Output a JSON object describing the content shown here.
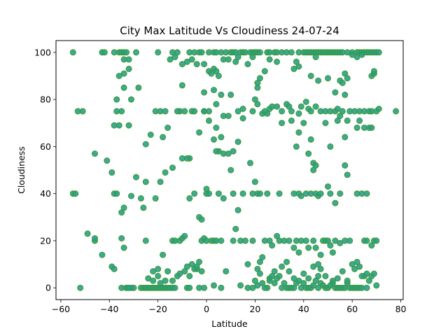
{
  "chart_data": {
    "type": "scatter",
    "title": "City Max Latitude Vs Cloudiness 24-07-24",
    "xlabel": "Latitude",
    "ylabel": "Cloudiness",
    "xlim": [
      -62,
      81
    ],
    "ylim": [
      -5,
      105
    ],
    "xticks": [
      -60,
      -40,
      -20,
      0,
      20,
      40,
      60,
      80
    ],
    "yticks": [
      0,
      20,
      40,
      60,
      80,
      100
    ],
    "xtick_labels": [
      "−60",
      "−40",
      "−20",
      "0",
      "20",
      "40",
      "60",
      "80"
    ],
    "ytick_labels": [
      "0",
      "20",
      "40",
      "60",
      "80",
      "100"
    ],
    "grid": false,
    "marker_face": "#2a9d8f",
    "marker_edge": "#3a9a1e",
    "points": [
      [
        -55,
        100
      ],
      [
        -43,
        100
      ],
      [
        -42,
        100
      ],
      [
        -38,
        100
      ],
      [
        -36,
        100
      ],
      [
        -35,
        100
      ],
      [
        -34,
        100
      ],
      [
        -33,
        100
      ],
      [
        -29,
        100
      ],
      [
        -20,
        100
      ],
      [
        -14,
        100
      ],
      [
        -12,
        100
      ],
      [
        -7,
        100
      ],
      [
        -5,
        100
      ],
      [
        -3,
        100
      ],
      [
        -2,
        100
      ],
      [
        1,
        100
      ],
      [
        3,
        100
      ],
      [
        4,
        100
      ],
      [
        6,
        100
      ],
      [
        8,
        100
      ],
      [
        10,
        100
      ],
      [
        11,
        100
      ],
      [
        12,
        100
      ],
      [
        14,
        100
      ],
      [
        15,
        100
      ],
      [
        16,
        100
      ],
      [
        18,
        100
      ],
      [
        19,
        100
      ],
      [
        20,
        100
      ],
      [
        21,
        100
      ],
      [
        22,
        100
      ],
      [
        25,
        100
      ],
      [
        26,
        100
      ],
      [
        28,
        100
      ],
      [
        29,
        100
      ],
      [
        31,
        100
      ],
      [
        33,
        100
      ],
      [
        35,
        100
      ],
      [
        38,
        100
      ],
      [
        40,
        100
      ],
      [
        41,
        100
      ],
      [
        42,
        100
      ],
      [
        43,
        100
      ],
      [
        44,
        100
      ],
      [
        45,
        100
      ],
      [
        46,
        100
      ],
      [
        47,
        100
      ],
      [
        48,
        100
      ],
      [
        49,
        100
      ],
      [
        50,
        100
      ],
      [
        51,
        100
      ],
      [
        52,
        100
      ],
      [
        53,
        100
      ],
      [
        54,
        100
      ],
      [
        55,
        100
      ],
      [
        56,
        100
      ],
      [
        58,
        100
      ],
      [
        60,
        100
      ],
      [
        62,
        100
      ],
      [
        63,
        100
      ],
      [
        64,
        100
      ],
      [
        65,
        100
      ],
      [
        66,
        100
      ],
      [
        67,
        100
      ],
      [
        68,
        100
      ],
      [
        69,
        100
      ],
      [
        70,
        100
      ],
      [
        71,
        100
      ],
      [
        -34,
        97
      ],
      [
        -32,
        97
      ],
      [
        -15,
        97
      ],
      [
        -13,
        98
      ],
      [
        -36,
        90
      ],
      [
        -34,
        91
      ],
      [
        -32,
        93
      ],
      [
        -10,
        95
      ],
      [
        -8,
        96
      ],
      [
        -6,
        97
      ],
      [
        -4,
        95
      ],
      [
        -1,
        95
      ],
      [
        1,
        92
      ],
      [
        2,
        91
      ],
      [
        3,
        93
      ],
      [
        4,
        92
      ],
      [
        5,
        90
      ],
      [
        7,
        97
      ],
      [
        9,
        97
      ],
      [
        12,
        96
      ],
      [
        13,
        98
      ],
      [
        17,
        95
      ],
      [
        19,
        98
      ],
      [
        21,
        87
      ],
      [
        22,
        89
      ],
      [
        24,
        92
      ],
      [
        26,
        97
      ],
      [
        29,
        96
      ],
      [
        36,
        93
      ],
      [
        37,
        96
      ],
      [
        38,
        94
      ],
      [
        43,
        90
      ],
      [
        45,
        98
      ],
      [
        46,
        88
      ],
      [
        50,
        89
      ],
      [
        53,
        83
      ],
      [
        55,
        88
      ],
      [
        56,
        87
      ],
      [
        57,
        91
      ],
      [
        58,
        89
      ],
      [
        60,
        99
      ],
      [
        62,
        98
      ],
      [
        64,
        99
      ],
      [
        68,
        90
      ],
      [
        69,
        91
      ],
      [
        69,
        92
      ],
      [
        -53,
        75
      ],
      [
        -51,
        75
      ],
      [
        -38,
        69
      ],
      [
        -37,
        75
      ],
      [
        -37,
        80
      ],
      [
        -35,
        75
      ],
      [
        -34,
        85
      ],
      [
        -31,
        80
      ],
      [
        -28,
        85
      ],
      [
        -21,
        75
      ],
      [
        -19,
        75
      ],
      [
        -17,
        75
      ],
      [
        -11,
        75
      ],
      [
        -9,
        75
      ],
      [
        -6,
        75
      ],
      [
        -1,
        75
      ],
      [
        -1,
        83
      ],
      [
        1,
        75
      ],
      [
        3,
        84
      ],
      [
        4,
        78
      ],
      [
        6,
        82
      ],
      [
        7,
        73
      ],
      [
        9,
        73
      ],
      [
        10,
        82
      ],
      [
        13,
        75
      ],
      [
        15,
        76
      ],
      [
        19,
        75
      ],
      [
        21,
        85
      ],
      [
        23,
        74
      ],
      [
        25,
        74
      ],
      [
        26,
        76
      ],
      [
        27,
        77
      ],
      [
        31,
        75
      ],
      [
        33,
        78
      ],
      [
        34,
        77
      ],
      [
        35,
        75
      ],
      [
        38,
        74
      ],
      [
        39,
        77
      ],
      [
        41,
        79
      ],
      [
        42,
        76
      ],
      [
        43,
        75
      ],
      [
        45,
        77
      ],
      [
        47,
        75
      ],
      [
        49,
        75
      ],
      [
        51,
        75
      ],
      [
        53,
        75
      ],
      [
        54,
        76
      ],
      [
        56,
        75
      ],
      [
        57,
        82
      ],
      [
        59,
        75
      ],
      [
        61,
        75
      ],
      [
        63,
        75
      ],
      [
        65,
        75
      ],
      [
        67,
        75
      ],
      [
        68,
        75
      ],
      [
        70,
        75
      ],
      [
        71,
        76
      ],
      [
        78,
        75
      ],
      [
        -36,
        69
      ],
      [
        -32,
        69
      ],
      [
        -25,
        61
      ],
      [
        -23,
        65
      ],
      [
        -18,
        64
      ],
      [
        -16,
        68
      ],
      [
        -12,
        75
      ],
      [
        -10,
        86
      ],
      [
        -7,
        55
      ],
      [
        -5,
        75
      ],
      [
        -3,
        66
      ],
      [
        -1,
        75
      ],
      [
        1,
        71
      ],
      [
        3,
        63
      ],
      [
        4,
        68
      ],
      [
        5,
        58
      ],
      [
        6,
        64
      ],
      [
        7,
        57
      ],
      [
        9,
        57
      ],
      [
        11,
        58
      ],
      [
        13,
        62
      ],
      [
        15,
        72
      ],
      [
        20,
        80
      ],
      [
        21,
        78
      ],
      [
        24,
        75
      ],
      [
        29,
        77
      ],
      [
        31,
        70
      ],
      [
        35,
        71
      ],
      [
        37,
        60
      ],
      [
        38,
        66
      ],
      [
        40,
        70
      ],
      [
        42,
        57
      ],
      [
        43,
        63
      ],
      [
        44,
        53
      ],
      [
        45,
        52
      ],
      [
        49,
        70
      ],
      [
        51,
        60
      ],
      [
        54,
        71
      ],
      [
        55,
        73
      ],
      [
        57,
        64
      ],
      [
        58,
        71
      ],
      [
        62,
        68
      ],
      [
        63,
        71
      ],
      [
        65,
        68
      ],
      [
        67,
        68
      ],
      [
        68,
        68
      ],
      [
        -55,
        40
      ],
      [
        -46,
        57
      ],
      [
        -41,
        54
      ],
      [
        -39,
        49
      ],
      [
        -38,
        40
      ],
      [
        -37,
        40
      ],
      [
        -35,
        32
      ],
      [
        -34,
        34
      ],
      [
        -31,
        39
      ],
      [
        -29,
        47
      ],
      [
        -25,
        45
      ],
      [
        -21,
        38
      ],
      [
        -19,
        45
      ],
      [
        -17,
        49
      ],
      [
        -14,
        51
      ],
      [
        -10,
        55
      ],
      [
        -8,
        55
      ],
      [
        -7,
        38
      ],
      [
        -5,
        40
      ],
      [
        -3,
        30
      ],
      [
        -2,
        29
      ],
      [
        0,
        42
      ],
      [
        0,
        40
      ],
      [
        1,
        40
      ],
      [
        4,
        58
      ],
      [
        5,
        40
      ],
      [
        7,
        38
      ],
      [
        10,
        50
      ],
      [
        11,
        40
      ],
      [
        13,
        33
      ],
      [
        15,
        40
      ],
      [
        18,
        53
      ],
      [
        19,
        40
      ],
      [
        20,
        45
      ],
      [
        21,
        40
      ],
      [
        22,
        40
      ],
      [
        25,
        40
      ],
      [
        30,
        40
      ],
      [
        36,
        40
      ],
      [
        38,
        40
      ],
      [
        39,
        39
      ],
      [
        41,
        40
      ],
      [
        43,
        40
      ],
      [
        44,
        50
      ],
      [
        45,
        40
      ],
      [
        46,
        39
      ],
      [
        47,
        40
      ],
      [
        50,
        43
      ],
      [
        51,
        40
      ],
      [
        53,
        36
      ],
      [
        55,
        40
      ],
      [
        57,
        52
      ],
      [
        58,
        48
      ],
      [
        62,
        40
      ],
      [
        64,
        40
      ],
      [
        66,
        40
      ],
      [
        -54,
        40
      ],
      [
        -49,
        23
      ],
      [
        -46,
        20
      ],
      [
        -46,
        21
      ],
      [
        -43,
        14
      ],
      [
        -39,
        9
      ],
      [
        -38,
        8
      ],
      [
        -35,
        21
      ],
      [
        -34,
        17
      ],
      [
        -33,
        0
      ],
      [
        -31,
        0
      ],
      [
        -30,
        0
      ],
      [
        -27,
        38
      ],
      [
        -26,
        34
      ],
      [
        -25,
        20
      ],
      [
        -24,
        4
      ],
      [
        -22,
        7
      ],
      [
        -20,
        8
      ],
      [
        -18,
        14
      ],
      [
        -16,
        7
      ],
      [
        -14,
        20
      ],
      [
        -13,
        20
      ],
      [
        -12,
        5
      ],
      [
        -11,
        20
      ],
      [
        -10,
        21
      ],
      [
        -9,
        22
      ],
      [
        -8,
        9
      ],
      [
        -6,
        10
      ],
      [
        -4,
        8
      ],
      [
        -3,
        11
      ],
      [
        -2,
        20
      ],
      [
        -1,
        21
      ],
      [
        0,
        20
      ],
      [
        2,
        20
      ],
      [
        3,
        20
      ],
      [
        4,
        20
      ],
      [
        6,
        20
      ],
      [
        8,
        7
      ],
      [
        11,
        20
      ],
      [
        12,
        25
      ],
      [
        14,
        20
      ],
      [
        16,
        20
      ],
      [
        17,
        10
      ],
      [
        19,
        20
      ],
      [
        21,
        8
      ],
      [
        22,
        11
      ],
      [
        23,
        13
      ],
      [
        24,
        20
      ],
      [
        26,
        20
      ],
      [
        27,
        18
      ],
      [
        29,
        22
      ],
      [
        30,
        20
      ],
      [
        32,
        20
      ],
      [
        34,
        20
      ],
      [
        36,
        17
      ],
      [
        37,
        20
      ],
      [
        38,
        15
      ],
      [
        39,
        20
      ],
      [
        41,
        20
      ],
      [
        42,
        17
      ],
      [
        44,
        20
      ],
      [
        45,
        17
      ],
      [
        46,
        10
      ],
      [
        47,
        14
      ],
      [
        48,
        20
      ],
      [
        49,
        20
      ],
      [
        50,
        20
      ],
      [
        51,
        18
      ],
      [
        52,
        15
      ],
      [
        53,
        20
      ],
      [
        55,
        19
      ],
      [
        57,
        20
      ],
      [
        59,
        20
      ],
      [
        60,
        10
      ],
      [
        62,
        11
      ],
      [
        63,
        9
      ],
      [
        65,
        20
      ],
      [
        66,
        20
      ],
      [
        68,
        18
      ],
      [
        69,
        20
      ],
      [
        70,
        20
      ],
      [
        -52,
        0
      ],
      [
        -35,
        0
      ],
      [
        -33,
        0
      ],
      [
        -32,
        0
      ],
      [
        -27,
        0
      ],
      [
        -26,
        0
      ],
      [
        -25,
        0
      ],
      [
        -24,
        0
      ],
      [
        -23,
        0
      ],
      [
        -22,
        0
      ],
      [
        -21,
        0
      ],
      [
        -20,
        0
      ],
      [
        -19,
        0
      ],
      [
        -18,
        0
      ],
      [
        -17,
        0
      ],
      [
        -16,
        0
      ],
      [
        -15,
        0
      ],
      [
        -14,
        0
      ],
      [
        -13,
        0
      ],
      [
        -8,
        0
      ],
      [
        -7,
        0
      ],
      [
        -3,
        0
      ],
      [
        -1,
        0
      ],
      [
        3,
        1
      ],
      [
        6,
        0
      ],
      [
        14,
        1
      ],
      [
        19,
        0
      ],
      [
        21,
        1
      ],
      [
        23,
        2
      ],
      [
        25,
        0
      ],
      [
        26,
        4
      ],
      [
        27,
        5
      ],
      [
        28,
        7
      ],
      [
        30,
        5
      ],
      [
        31,
        0
      ],
      [
        32,
        2
      ],
      [
        33,
        0
      ],
      [
        34,
        0
      ],
      [
        35,
        0
      ],
      [
        36,
        0
      ],
      [
        37,
        2
      ],
      [
        38,
        3
      ],
      [
        39,
        0
      ],
      [
        40,
        2
      ],
      [
        41,
        0
      ],
      [
        42,
        0
      ],
      [
        43,
        0
      ],
      [
        44,
        1
      ],
      [
        45,
        3
      ],
      [
        46,
        0
      ],
      [
        47,
        2
      ],
      [
        48,
        1
      ],
      [
        49,
        0
      ],
      [
        50,
        0
      ],
      [
        51,
        1
      ],
      [
        52,
        2
      ],
      [
        53,
        0
      ],
      [
        54,
        0
      ],
      [
        55,
        0
      ],
      [
        56,
        0
      ],
      [
        57,
        0
      ],
      [
        58,
        2
      ],
      [
        59,
        0
      ],
      [
        60,
        0
      ],
      [
        61,
        0
      ],
      [
        62,
        0
      ],
      [
        63,
        0
      ],
      [
        64,
        0
      ],
      [
        65,
        5
      ],
      [
        66,
        6
      ],
      [
        67,
        3
      ],
      [
        68,
        5
      ],
      [
        69,
        6
      ],
      [
        70,
        1
      ],
      [
        -22,
        3
      ],
      [
        -20,
        5
      ],
      [
        -19,
        2
      ],
      [
        -17,
        3
      ],
      [
        -14,
        3
      ],
      [
        -11,
        6
      ],
      [
        -9,
        7
      ],
      [
        -7,
        5
      ],
      [
        -5,
        8
      ],
      [
        -4,
        9
      ],
      [
        -2,
        7
      ],
      [
        17,
        0
      ],
      [
        20,
        3
      ],
      [
        22,
        6
      ],
      [
        24,
        0
      ],
      [
        26,
        3
      ],
      [
        28,
        2
      ],
      [
        29,
        4
      ],
      [
        31,
        9
      ],
      [
        33,
        11
      ],
      [
        34,
        7
      ],
      [
        36,
        4
      ],
      [
        40,
        6
      ],
      [
        42,
        4
      ],
      [
        44,
        9
      ],
      [
        46,
        5
      ],
      [
        47,
        8
      ],
      [
        49,
        5
      ],
      [
        52,
        3
      ],
      [
        54,
        4
      ],
      [
        56,
        7
      ],
      [
        58,
        3
      ],
      [
        61,
        8
      ],
      [
        64,
        5
      ],
      [
        66,
        0
      ]
    ]
  }
}
